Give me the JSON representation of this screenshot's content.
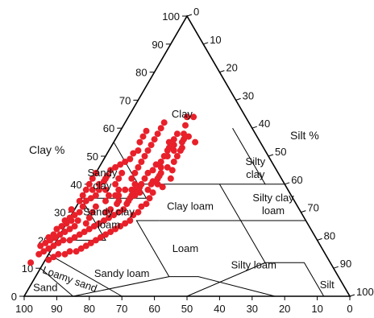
{
  "chart_data": {
    "type": "scatter",
    "subtype": "soil-texture-ternary",
    "title": "",
    "axes": {
      "clay": {
        "label": "Clay %",
        "ticks": [
          0,
          10,
          20,
          30,
          40,
          50,
          60,
          70,
          80,
          90,
          100
        ]
      },
      "silt": {
        "label": "Silt %",
        "ticks": [
          0,
          10,
          20,
          30,
          40,
          50,
          60,
          70,
          80,
          90,
          100
        ]
      },
      "sand": {
        "label": "",
        "ticks": [
          100,
          90,
          80,
          70,
          60,
          50,
          40,
          30,
          20,
          10,
          0
        ]
      }
    },
    "regions": [
      {
        "id": "clay",
        "label": "Clay"
      },
      {
        "id": "silty-clay",
        "label": "Silty clay"
      },
      {
        "id": "sandy-clay",
        "label": "Sandy clay"
      },
      {
        "id": "clay-loam",
        "label": "Clay loam"
      },
      {
        "id": "silty-clay-loam",
        "label": "Silty clay loam"
      },
      {
        "id": "sandy-clay-loam",
        "label": "Sandy clay loam"
      },
      {
        "id": "loam",
        "label": "Loam"
      },
      {
        "id": "sandy-loam",
        "label": "Sandy loam"
      },
      {
        "id": "silt-loam",
        "label": "Silty loam"
      },
      {
        "id": "silt",
        "label": "Silt"
      },
      {
        "id": "loamy-sand",
        "label": "Loamy sand"
      },
      {
        "id": "sand",
        "label": "Sand"
      }
    ],
    "point_color": "#e8202a",
    "points_note": "each point = [sand %, clay %]; silt % = 100 - sand - clay",
    "points": [
      [
        18,
        64
      ],
      [
        16,
        64
      ],
      [
        20,
        61
      ],
      [
        22,
        58
      ],
      [
        26,
        56
      ],
      [
        24,
        58
      ],
      [
        28,
        55
      ],
      [
        24,
        55
      ],
      [
        20,
        55
      ],
      [
        28,
        52
      ],
      [
        30,
        52
      ],
      [
        26,
        52
      ],
      [
        32,
        50
      ],
      [
        28,
        50
      ],
      [
        34,
        48
      ],
      [
        30,
        48
      ],
      [
        36,
        47
      ],
      [
        32,
        45
      ],
      [
        38,
        45
      ],
      [
        36,
        44
      ],
      [
        40,
        44
      ],
      [
        34,
        42
      ],
      [
        40,
        41
      ],
      [
        38,
        39
      ],
      [
        44,
        40
      ],
      [
        42,
        37
      ],
      [
        46,
        37
      ],
      [
        44,
        35
      ],
      [
        48,
        36
      ],
      [
        46,
        33
      ],
      [
        50,
        35
      ],
      [
        48,
        32
      ],
      [
        52,
        33
      ],
      [
        50,
        30
      ],
      [
        54,
        31
      ],
      [
        52,
        29
      ],
      [
        56,
        30
      ],
      [
        54,
        27
      ],
      [
        58,
        29
      ],
      [
        56,
        26
      ],
      [
        60,
        28
      ],
      [
        58,
        25
      ],
      [
        62,
        27
      ],
      [
        60,
        24
      ],
      [
        64,
        26
      ],
      [
        62,
        23
      ],
      [
        66,
        25
      ],
      [
        64,
        22
      ],
      [
        68,
        24
      ],
      [
        66,
        21
      ],
      [
        70,
        23
      ],
      [
        68,
        20
      ],
      [
        72,
        22
      ],
      [
        70,
        19
      ],
      [
        74,
        21
      ],
      [
        72,
        18
      ],
      [
        76,
        20
      ],
      [
        74,
        17
      ],
      [
        78,
        20
      ],
      [
        76,
        16
      ],
      [
        80,
        19
      ],
      [
        78,
        16
      ],
      [
        82,
        18
      ],
      [
        80,
        15
      ],
      [
        84,
        17
      ],
      [
        82,
        15
      ],
      [
        86,
        16
      ],
      [
        84,
        14
      ],
      [
        88,
        15
      ],
      [
        86,
        13
      ],
      [
        60,
        40
      ],
      [
        58,
        42
      ],
      [
        56,
        44
      ],
      [
        54,
        42
      ],
      [
        52,
        40
      ],
      [
        50,
        42
      ],
      [
        48,
        44
      ],
      [
        46,
        42
      ],
      [
        44,
        44
      ],
      [
        42,
        46
      ],
      [
        40,
        48
      ],
      [
        38,
        50
      ],
      [
        36,
        52
      ],
      [
        34,
        54
      ],
      [
        32,
        56
      ],
      [
        30,
        58
      ],
      [
        28,
        60
      ],
      [
        26,
        62
      ],
      [
        48,
        38
      ],
      [
        52,
        38
      ],
      [
        56,
        36
      ],
      [
        58,
        34
      ],
      [
        54,
        36
      ],
      [
        50,
        38
      ],
      [
        46,
        40
      ],
      [
        42,
        42
      ],
      [
        38,
        42
      ],
      [
        62,
        32
      ],
      [
        64,
        30
      ],
      [
        66,
        28
      ],
      [
        68,
        26
      ],
      [
        70,
        27
      ],
      [
        72,
        25
      ],
      [
        74,
        24
      ],
      [
        76,
        23
      ],
      [
        78,
        22
      ],
      [
        80,
        21
      ],
      [
        82,
        21
      ],
      [
        62,
        35
      ],
      [
        60,
        36
      ],
      [
        58,
        38
      ],
      [
        56,
        38
      ],
      [
        54,
        34
      ],
      [
        64,
        34
      ],
      [
        66,
        32
      ],
      [
        68,
        30
      ],
      [
        70,
        29
      ],
      [
        72,
        28
      ],
      [
        74,
        27
      ],
      [
        60,
        30
      ],
      [
        58,
        31
      ],
      [
        55,
        33
      ],
      [
        53,
        36
      ],
      [
        51,
        34
      ],
      [
        49,
        36
      ],
      [
        47,
        38
      ],
      [
        45,
        39
      ],
      [
        43,
        38
      ],
      [
        41,
        40
      ],
      [
        39,
        40
      ],
      [
        37,
        43
      ],
      [
        35,
        46
      ],
      [
        33,
        46
      ],
      [
        31,
        50
      ],
      [
        29,
        53
      ],
      [
        27,
        54
      ],
      [
        25,
        53
      ],
      [
        23,
        56
      ],
      [
        21,
        57
      ],
      [
        86,
        18
      ],
      [
        84,
        19
      ],
      [
        82,
        20
      ],
      [
        80,
        22
      ],
      [
        78,
        24
      ],
      [
        76,
        25
      ],
      [
        74,
        26
      ],
      [
        72,
        27
      ],
      [
        70,
        31
      ],
      [
        66,
        34
      ],
      [
        64,
        36
      ],
      [
        62,
        38
      ],
      [
        60,
        38
      ],
      [
        57,
        40
      ],
      [
        55,
        41
      ],
      [
        53,
        43
      ],
      [
        51,
        45
      ],
      [
        49,
        46
      ],
      [
        47,
        47
      ],
      [
        45,
        48
      ],
      [
        43,
        49
      ],
      [
        41,
        51
      ],
      [
        39,
        52
      ],
      [
        37,
        55
      ],
      [
        35,
        57
      ],
      [
        33,
        59
      ],
      [
        92,
        12
      ]
    ]
  }
}
